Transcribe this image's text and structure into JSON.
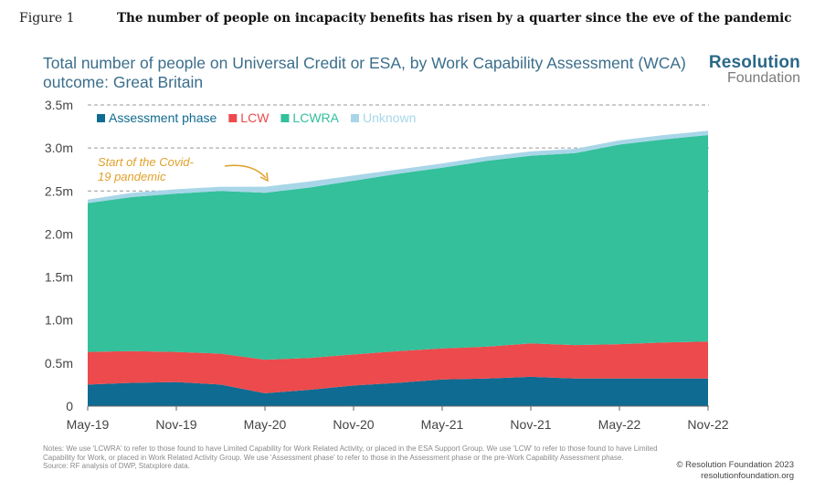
{
  "figure_label": "Figure 1",
  "figure_headline": "The number of people on incapacity benefits has risen by a quarter since the eve of the pandemic",
  "brand": {
    "top": "Resolution",
    "bottom": "Foundation"
  },
  "notes": {
    "text": "Notes: We use 'LCWRA' to refer to those found to have Limited Capability for Work Related Activity, or placed in the ESA Support Group. We use 'LCW' to refer to those found to have Limited Capability for Work, or placed in Work Related Activity Group. We use 'Assessment phase' to refer to those in the Assessment phase or the pre-Work Capability Assessment phase.",
    "source": "Source: RF analysis of DWP, Statxplore data."
  },
  "copyright": {
    "line1": "© Resolution Foundation 2023",
    "line2": "resolutionfoundation.org"
  },
  "chart_data": {
    "type": "area",
    "title": "Total number of people on Universal Credit or ESA, by Work Capability Assessment (WCA) outcome: Great Britain",
    "stacked": true,
    "x": [
      "May-19",
      "Aug-19",
      "Nov-19",
      "Feb-20",
      "May-20",
      "Aug-20",
      "Nov-20",
      "Feb-21",
      "May-21",
      "Aug-21",
      "Nov-21",
      "Feb-22",
      "May-22",
      "Aug-22",
      "Nov-22"
    ],
    "x_tick_labels": [
      "May-19",
      "Nov-19",
      "May-20",
      "Nov-20",
      "May-21",
      "Nov-21",
      "May-22",
      "Nov-22"
    ],
    "y_tick_labels": [
      "0",
      "0.5m",
      "1.0m",
      "1.5m",
      "2.0m",
      "2.5m",
      "3.0m",
      "3.5m"
    ],
    "y_ticks": [
      0,
      0.5,
      1.0,
      1.5,
      2.0,
      2.5,
      3.0,
      3.5
    ],
    "ylim": [
      0,
      3.5
    ],
    "y_unit": "millions",
    "grid_lines_dashed": [
      2.5,
      3.0,
      3.5
    ],
    "legend_position": "top-left",
    "series": [
      {
        "name": "Assessment phase",
        "color": "#0f6b91",
        "values": [
          0.25,
          0.27,
          0.28,
          0.25,
          0.15,
          0.19,
          0.24,
          0.27,
          0.31,
          0.32,
          0.34,
          0.32,
          0.32,
          0.32,
          0.32
        ]
      },
      {
        "name": "LCW",
        "color": "#ec4a4c",
        "values": [
          0.38,
          0.37,
          0.35,
          0.36,
          0.39,
          0.37,
          0.36,
          0.37,
          0.36,
          0.37,
          0.39,
          0.39,
          0.4,
          0.42,
          0.43
        ]
      },
      {
        "name": "LCWRA",
        "color": "#33c09b",
        "values": [
          1.73,
          1.79,
          1.84,
          1.89,
          1.94,
          1.98,
          2.02,
          2.06,
          2.1,
          2.16,
          2.18,
          2.23,
          2.32,
          2.36,
          2.4
        ]
      },
      {
        "name": "Unknown",
        "color": "#a8d6e8",
        "values": [
          0.04,
          0.05,
          0.05,
          0.05,
          0.07,
          0.07,
          0.06,
          0.05,
          0.05,
          0.05,
          0.05,
          0.05,
          0.05,
          0.05,
          0.05
        ]
      }
    ],
    "annotation": {
      "text_line1": "Start of the Covid-",
      "text_line2": "19 pandemic",
      "at_x": "May-20",
      "color": "#e0a02a"
    }
  }
}
